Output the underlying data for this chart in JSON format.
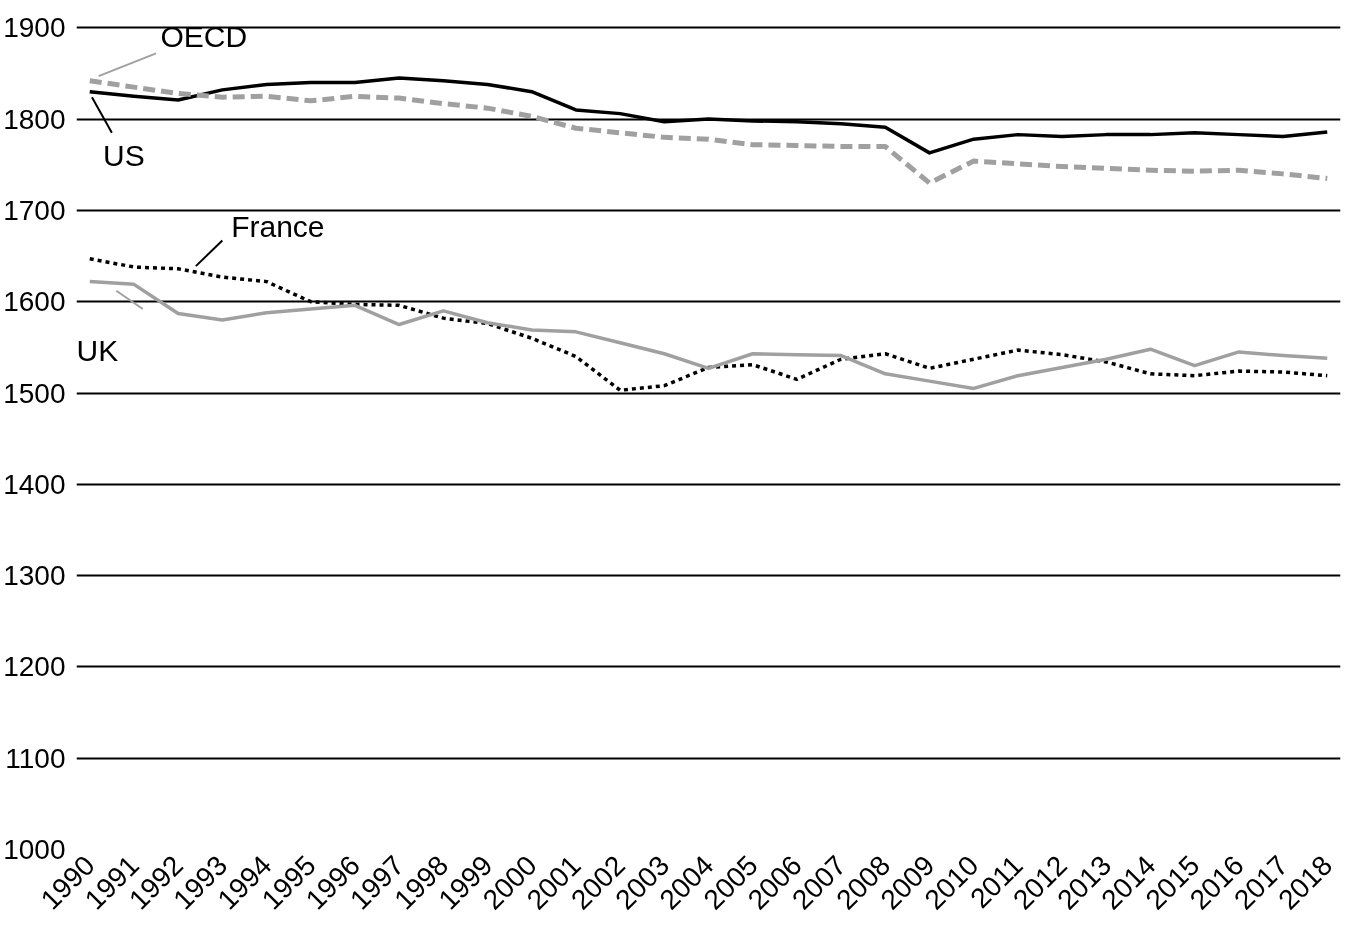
{
  "chart_data": {
    "type": "line",
    "categories": [
      "1990",
      "1991",
      "1992",
      "1993",
      "1994",
      "1995",
      "1996",
      "1997",
      "1998",
      "1999",
      "2000",
      "2001",
      "2002",
      "2003",
      "2004",
      "2005",
      "2006",
      "2007",
      "2008",
      "2009",
      "2010",
      "2011",
      "2012",
      "2013",
      "2014",
      "2015",
      "2016",
      "2017",
      "2018"
    ],
    "ylim": [
      1000,
      1900
    ],
    "yticks": [
      1000,
      1100,
      1200,
      1300,
      1400,
      1500,
      1600,
      1700,
      1800,
      1900
    ],
    "grid": "y",
    "legend": "left",
    "series": [
      {
        "name": "US",
        "color": "#000000",
        "line_style": "solid",
        "values": [
          1830,
          1825,
          1821,
          1832,
          1838,
          1840,
          1840,
          1845,
          1842,
          1838,
          1830,
          1810,
          1806,
          1797,
          1800,
          1798,
          1797,
          1795,
          1791,
          1763,
          1778,
          1783,
          1781,
          1783,
          1783,
          1785,
          1783,
          1781,
          1786
        ]
      },
      {
        "name": "OECD",
        "color": "#a0a0a0",
        "line_style": "dashed",
        "values": [
          1842,
          1835,
          1828,
          1824,
          1825,
          1820,
          1825,
          1823,
          1817,
          1812,
          1803,
          1790,
          1785,
          1780,
          1778,
          1772,
          1771,
          1770,
          1770,
          1730,
          1754,
          1751,
          1748,
          1746,
          1744,
          1743,
          1744,
          1740,
          1735
        ]
      },
      {
        "name": "France",
        "color": "#000000",
        "line_style": "dotted",
        "values": [
          1647,
          1638,
          1636,
          1627,
          1622,
          1600,
          1597,
          1596,
          1582,
          1576,
          1560,
          1540,
          1503,
          1508,
          1528,
          1531,
          1515,
          1537,
          1543,
          1527,
          1537,
          1547,
          1542,
          1534,
          1521,
          1519,
          1524,
          1523,
          1519
        ]
      },
      {
        "name": "UK",
        "color": "#a0a0a0",
        "line_style": "solid",
        "values": [
          1622,
          1619,
          1587,
          1580,
          1588,
          1592,
          1596,
          1575,
          1590,
          1577,
          1569,
          1567,
          1555,
          1543,
          1527,
          1543,
          1542,
          1541,
          1521,
          1513,
          1505,
          1519,
          1528,
          1537,
          1548,
          1530,
          1545,
          1541,
          1538
        ]
      }
    ]
  }
}
